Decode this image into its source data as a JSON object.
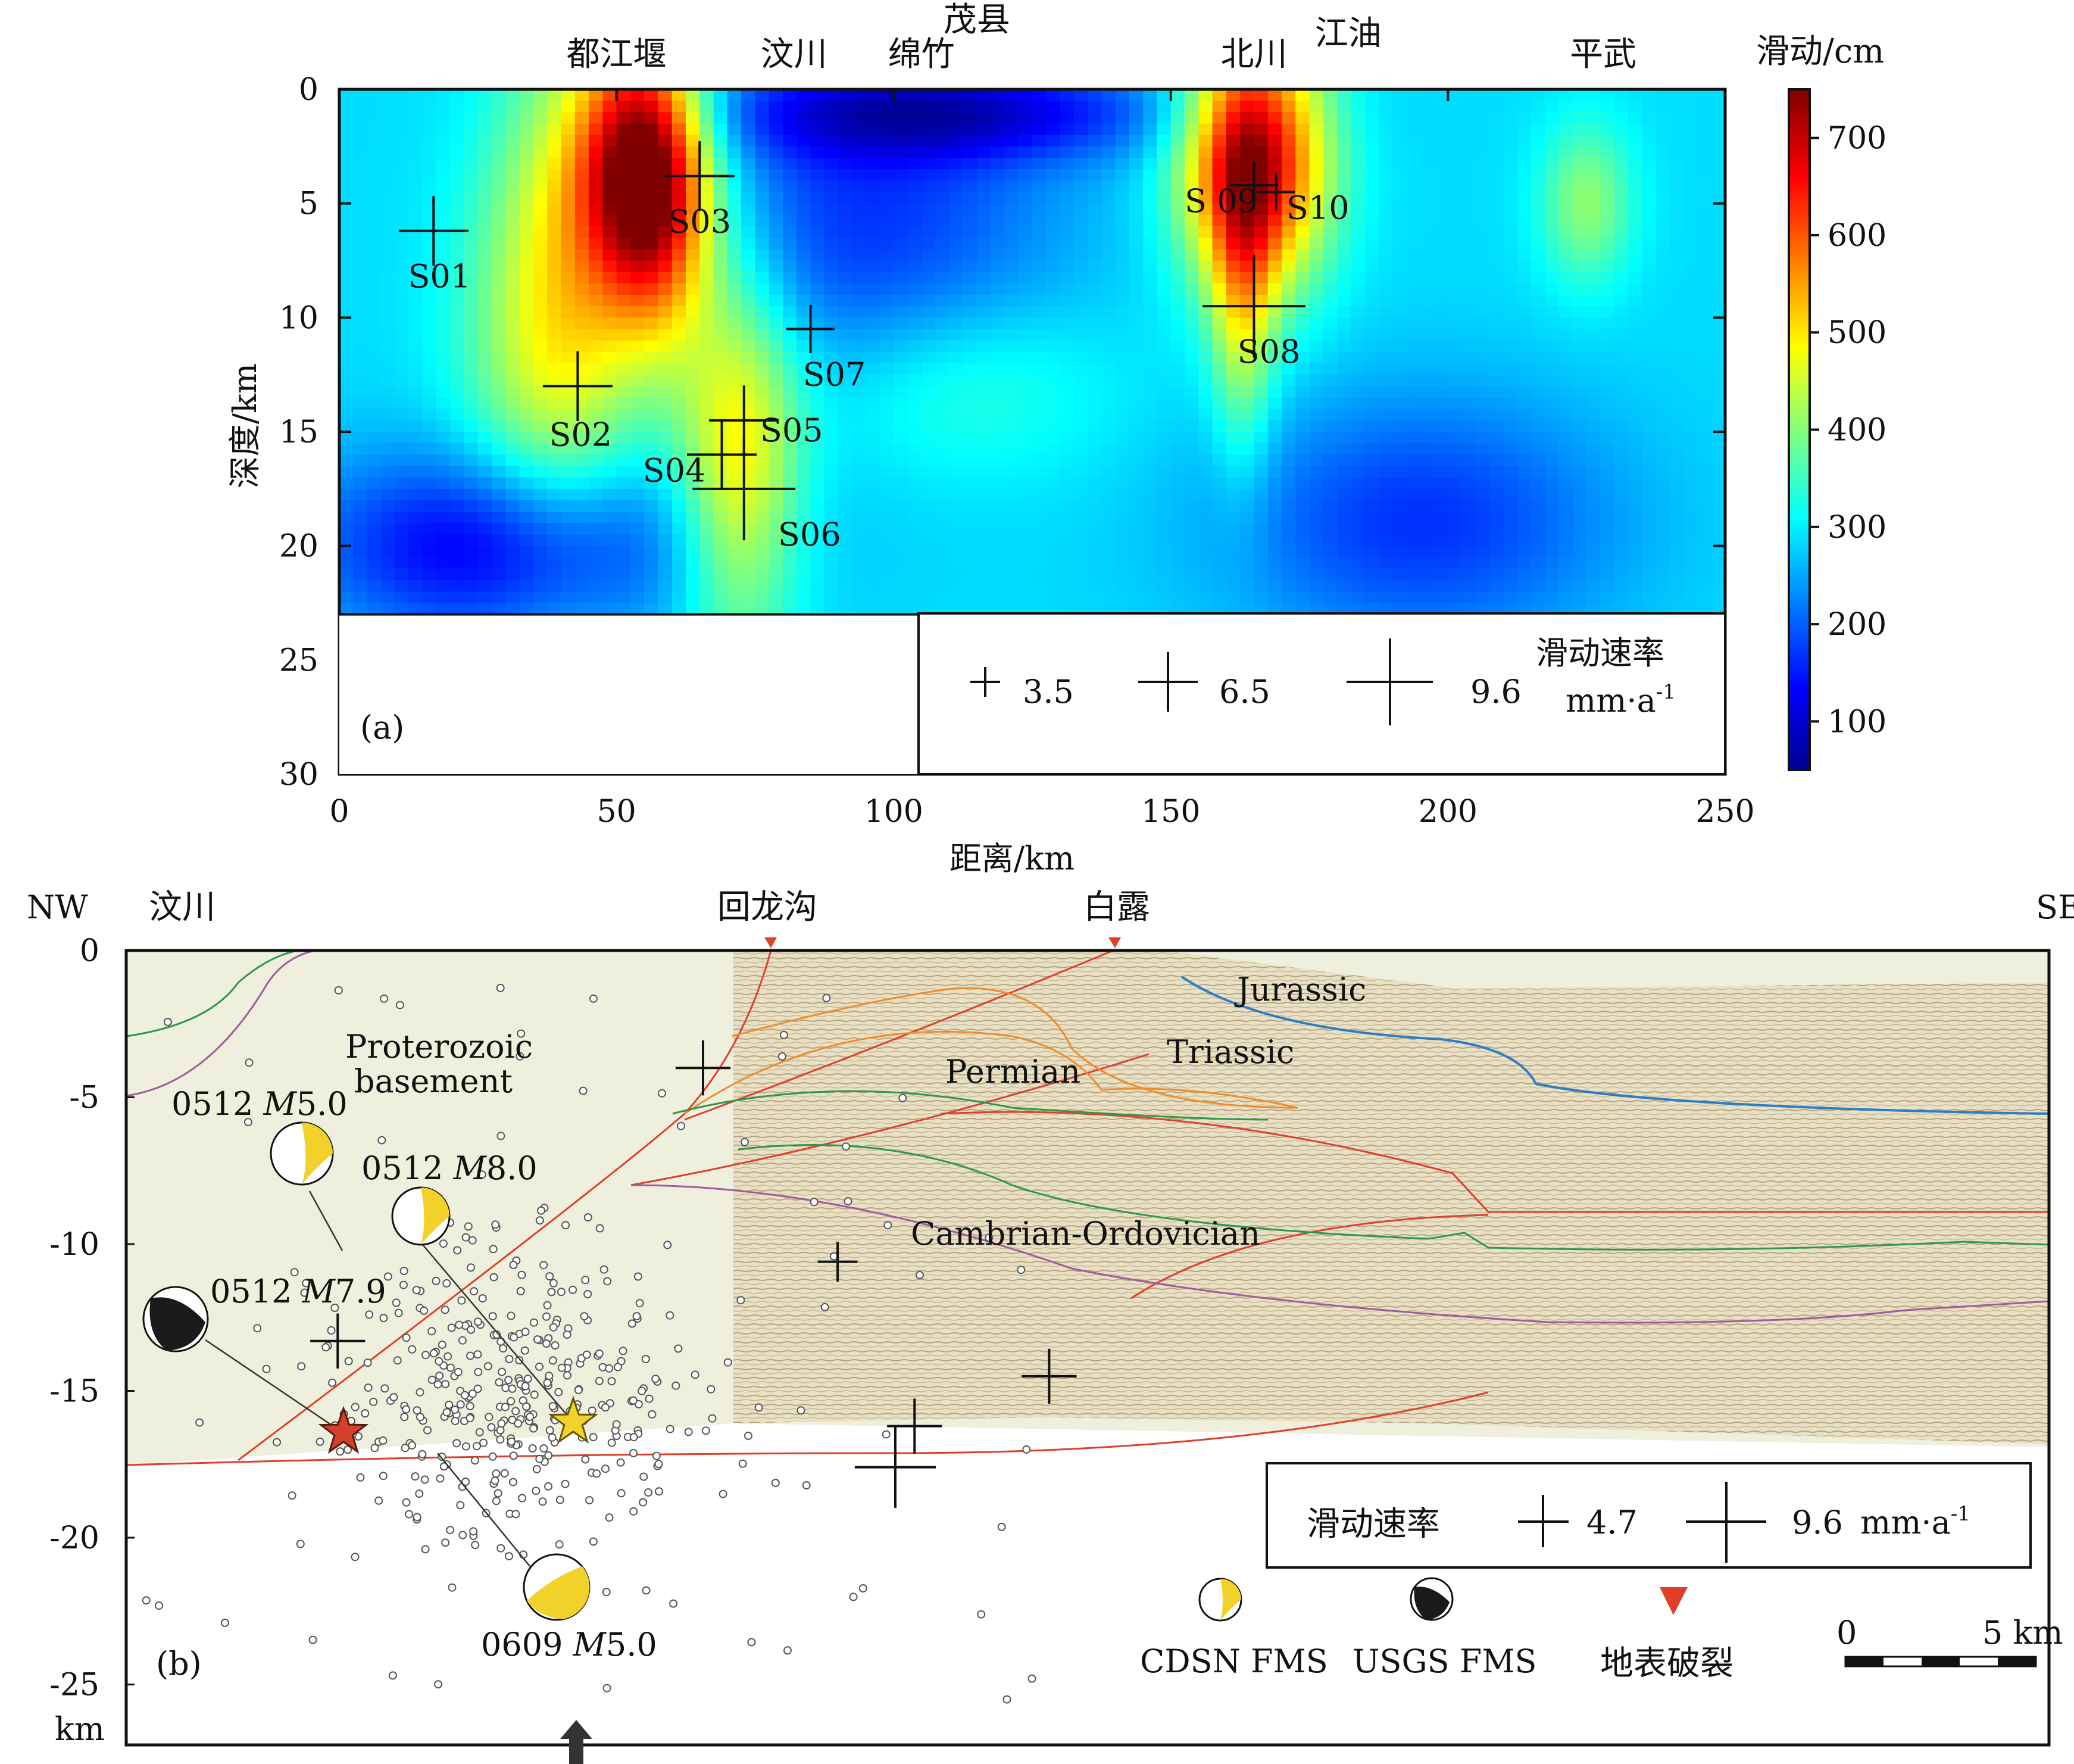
{
  "figure": {
    "panel_a_label": "(a)",
    "panel_b_label": "(b)"
  },
  "chart_data": [
    {
      "type": "heatmap",
      "panel": "(a)",
      "xlabel": "距离/km",
      "ylabel": "深度/km",
      "xlim": [
        0,
        250
      ],
      "ylim": [
        30,
        0
      ],
      "x_ticks": [
        "0",
        "50",
        "100",
        "150",
        "200",
        "250"
      ],
      "y_ticks": [
        "0",
        "5",
        "10",
        "15",
        "20",
        "25",
        "30"
      ],
      "model_depth_max": 23,
      "colorbar": {
        "title": "滑动/cm",
        "range": [
          50,
          750
        ],
        "ticks": [
          "100",
          "200",
          "300",
          "400",
          "500",
          "600",
          "700"
        ]
      },
      "places": [
        {
          "name": "都江堰",
          "km": 50
        },
        {
          "name": "汶川",
          "km": 82
        },
        {
          "name": "茂县",
          "km": 115
        },
        {
          "name": "绵竹",
          "km": 105
        },
        {
          "name": "北川",
          "km": 165
        },
        {
          "name": "江油",
          "km": 182
        },
        {
          "name": "平武",
          "km": 228
        }
      ],
      "slip_patches": [
        {
          "x": 55,
          "z": 3,
          "sx": 8,
          "sz": 4,
          "amp": 420
        },
        {
          "x": 58,
          "z": 7,
          "sx": 7,
          "sz": 4,
          "amp": 150
        },
        {
          "x": 165,
          "z": 3,
          "sx": 9,
          "sz": 4,
          "amp": 430
        },
        {
          "x": 163,
          "z": 9,
          "sx": 4,
          "sz": 5,
          "amp": 150
        },
        {
          "x": 42,
          "z": 8,
          "sx": 10,
          "sz": 8,
          "amp": 190
        },
        {
          "x": 72,
          "z": 16,
          "sx": 8,
          "sz": 6,
          "amp": 220
        },
        {
          "x": 32,
          "z": 12,
          "sx": 10,
          "sz": 6,
          "amp": 60
        },
        {
          "x": 110,
          "z": 13,
          "sx": 20,
          "sz": 3,
          "amp": 80
        },
        {
          "x": 95,
          "z": 6,
          "sx": 25,
          "sz": 6,
          "amp": -120
        },
        {
          "x": 110,
          "z": 1,
          "sx": 30,
          "sz": 1.5,
          "amp": -150
        },
        {
          "x": 225,
          "z": 5,
          "sx": 6,
          "sz": 2.5,
          "amp": 120
        },
        {
          "x": 195,
          "z": 19,
          "sx": 25,
          "sz": 4,
          "amp": -120
        },
        {
          "x": 30,
          "z": 20,
          "sx": 25,
          "sz": 3,
          "amp": -180
        }
      ],
      "slip_base": 290,
      "stations": [
        {
          "name": "S01",
          "x": 17,
          "z": 6.2,
          "rate": 6.5
        },
        {
          "name": "S02",
          "x": 43,
          "z": 13,
          "rate": 6.5
        },
        {
          "name": "S03",
          "x": 65,
          "z": 3.8,
          "rate": 6.5
        },
        {
          "name": "S04",
          "x": 69,
          "z": 16,
          "rate": 6.5
        },
        {
          "name": "S05",
          "x": 73,
          "z": 14.5,
          "rate": 6.5
        },
        {
          "name": "S06",
          "x": 73,
          "z": 17.5,
          "rate": 9.6
        },
        {
          "name": "S07",
          "x": 85,
          "z": 10.5,
          "rate": 4.5
        },
        {
          "name": "S08",
          "x": 165,
          "z": 9.5,
          "rate": 9.6
        },
        {
          "name": "S 09",
          "x": 165,
          "z": 4.2,
          "rate": 4.5
        },
        {
          "name": "S10",
          "x": 169,
          "z": 4.5,
          "rate": 3.5
        }
      ],
      "legend": {
        "title": "滑动速率",
        "unit": "mm·a",
        "unit_sup": "-1",
        "entries": [
          "3.5",
          "6.5",
          "9.6"
        ]
      }
    },
    {
      "type": "scatter",
      "panel": "(b)",
      "nw_label": "NW",
      "se_label": "SE",
      "ylabel_unit": "km",
      "ylim": [
        -27,
        0
      ],
      "y_ticks": [
        "0",
        "-5",
        "-10",
        "-15",
        "-20",
        "-25"
      ],
      "places": [
        {
          "name": "汶川",
          "pos": 0.05
        },
        {
          "name": "回龙沟",
          "pos": 0.39
        },
        {
          "name": "白露",
          "pos": 0.58
        }
      ],
      "strata": [
        "Jurassic",
        "Triassic",
        "Permian",
        "Cambrian-Ordovician",
        "Proterozoic basement"
      ],
      "events": [
        {
          "id": "0512 ",
          "mag": "M",
          "val": "5.0",
          "source": "CDSN"
        },
        {
          "id": "0512 ",
          "mag": "M",
          "val": "8.0",
          "source": "CDSN"
        },
        {
          "id": "0512 ",
          "mag": "M",
          "val": "7.9",
          "source": "USGS"
        },
        {
          "id": "0609 ",
          "mag": "M",
          "val": "5.0",
          "source": "CDSN"
        }
      ],
      "rate_crosses": [
        {
          "dist": 0.11,
          "depth": -13.3,
          "rate": 6.5
        },
        {
          "dist": 0.3,
          "depth": -4,
          "rate": 6.5
        },
        {
          "dist": 0.37,
          "depth": -10.6,
          "rate": 4.7
        },
        {
          "dist": 0.4,
          "depth": -17.6,
          "rate": 9.6
        },
        {
          "dist": 0.41,
          "depth": -16.2,
          "rate": 6.5
        },
        {
          "dist": 0.48,
          "depth": -14.5,
          "rate": 6.5
        }
      ],
      "legend": {
        "title": "滑动速率",
        "entries": [
          "4.7",
          "9.6"
        ],
        "unit": "mm·a",
        "unit_sup": "-1"
      },
      "symbols": {
        "cdsn": "CDSN FMS",
        "usgs": "USGS FMS",
        "rupture": "地表破裂"
      },
      "scalebar": {
        "start": "0",
        "end": "5 km"
      }
    }
  ],
  "colors": {
    "frame": "#111111",
    "fault": "#e0402a",
    "jurassic": "#2a7fc4",
    "permian": "#f08c2a",
    "cambrian": "#2a9a4a",
    "basement": "#a05aa0",
    "star_red": "#d6402a",
    "star_yellow": "#f2d12a"
  }
}
